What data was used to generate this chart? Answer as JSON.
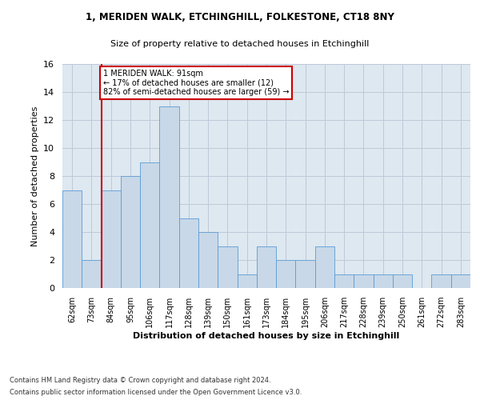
{
  "title1": "1, MERIDEN WALK, ETCHINGHILL, FOLKESTONE, CT18 8NY",
  "title2": "Size of property relative to detached houses in Etchinghill",
  "xlabel": "Distribution of detached houses by size in Etchinghill",
  "ylabel": "Number of detached properties",
  "bar_labels": [
    "62sqm",
    "73sqm",
    "84sqm",
    "95sqm",
    "106sqm",
    "117sqm",
    "128sqm",
    "139sqm",
    "150sqm",
    "161sqm",
    "173sqm",
    "184sqm",
    "195sqm",
    "206sqm",
    "217sqm",
    "228sqm",
    "239sqm",
    "250sqm",
    "261sqm",
    "272sqm",
    "283sqm"
  ],
  "bar_values": [
    7,
    2,
    7,
    8,
    9,
    13,
    5,
    4,
    3,
    1,
    3,
    2,
    2,
    3,
    1,
    1,
    1,
    1,
    0,
    1,
    1
  ],
  "bar_color": "#c8d8e8",
  "bar_edge_color": "#5b9bd5",
  "vline_x": 1.5,
  "annotation_text": "1 MERIDEN WALK: 91sqm\n← 17% of detached houses are smaller (12)\n82% of semi-detached houses are larger (59) →",
  "annotation_box_color": "#ffffff",
  "annotation_box_edge_color": "#cc0000",
  "ylim": [
    0,
    16
  ],
  "yticks": [
    0,
    2,
    4,
    6,
    8,
    10,
    12,
    14,
    16
  ],
  "footer_line1": "Contains HM Land Registry data © Crown copyright and database right 2024.",
  "footer_line2": "Contains public sector information licensed under the Open Government Licence v3.0.",
  "grid_color": "#c0c8d8",
  "background_color": "#dde8f0"
}
